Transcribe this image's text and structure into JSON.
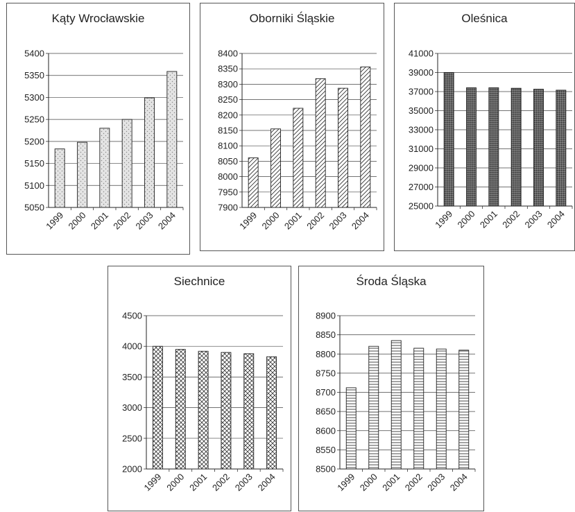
{
  "chart_data": [
    {
      "type": "bar",
      "title": "Kąty Wrocławskie",
      "categories": [
        "1999",
        "2000",
        "2001",
        "2002",
        "2003",
        "2004"
      ],
      "values": [
        5183,
        5198,
        5230,
        5250,
        5299,
        5359
      ],
      "ylim": [
        5050,
        5400
      ],
      "yticks": [
        5050,
        5100,
        5150,
        5200,
        5250,
        5300,
        5350,
        5400
      ],
      "grid": true,
      "fill": "dots"
    },
    {
      "type": "bar",
      "title": "Oborniki Śląskie",
      "categories": [
        "1999",
        "2000",
        "2001",
        "2002",
        "2003",
        "2004"
      ],
      "values": [
        8061,
        8155,
        8222,
        8318,
        8287,
        8356
      ],
      "ylim": [
        7900,
        8400
      ],
      "yticks": [
        7900,
        7950,
        8000,
        8050,
        8100,
        8150,
        8200,
        8250,
        8300,
        8350,
        8400
      ],
      "grid": true,
      "fill": "diagonal"
    },
    {
      "type": "bar",
      "title": "Oleśnica",
      "categories": [
        "1999",
        "2000",
        "2001",
        "2002",
        "2003",
        "2004"
      ],
      "values": [
        39000,
        37400,
        37400,
        37350,
        37250,
        37150
      ],
      "ylim": [
        25000,
        41000
      ],
      "yticks": [
        25000,
        27000,
        29000,
        31000,
        33000,
        35000,
        37000,
        39000,
        41000
      ],
      "grid": true,
      "fill": "dark"
    },
    {
      "type": "bar",
      "title": "Siechnice",
      "categories": [
        "1999",
        "2000",
        "2001",
        "2002",
        "2003",
        "2004"
      ],
      "values": [
        4000,
        3950,
        3920,
        3900,
        3880,
        3830
      ],
      "ylim": [
        2000,
        4500
      ],
      "yticks": [
        2000,
        2500,
        3000,
        3500,
        4000,
        4500
      ],
      "grid": true,
      "fill": "crosshatch"
    },
    {
      "type": "bar",
      "title": "Środa Śląska",
      "categories": [
        "1999",
        "2000",
        "2001",
        "2002",
        "2003",
        "2004"
      ],
      "values": [
        8712,
        8820,
        8835,
        8815,
        8813,
        8810
      ],
      "ylim": [
        8500,
        8900
      ],
      "yticks": [
        8500,
        8550,
        8600,
        8650,
        8700,
        8750,
        8800,
        8850,
        8900
      ],
      "grid": true,
      "fill": "horizontal"
    }
  ]
}
